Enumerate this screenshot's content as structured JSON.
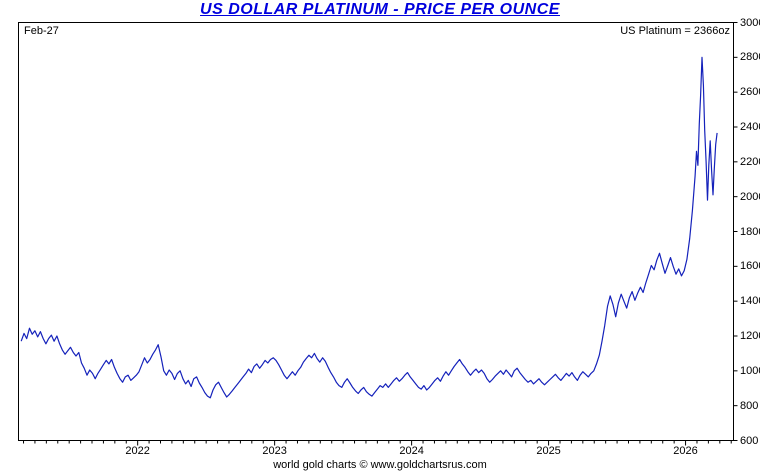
{
  "title": "US DOLLAR PLATINUM - PRICE PER OUNCE",
  "annotations": {
    "date_label": "Feb-27",
    "current_label": "US Platinum = 2366oz"
  },
  "footer": "world gold charts © www.goldchartsrus.com",
  "colors": {
    "title": "#0000dd",
    "line": "#1522bb",
    "axis": "#000000"
  },
  "chart_data": {
    "type": "line",
    "title": "US DOLLAR PLATINUM - PRICE PER OUNCE",
    "xlabel": "",
    "ylabel": "",
    "x_unit": "decimal_year",
    "xlim": [
      2021.13,
      2026.35
    ],
    "ylim": [
      600,
      3000
    ],
    "grid": false,
    "legend_position": "none",
    "x_ticks": [
      2022,
      2023,
      2024,
      2025,
      2026
    ],
    "y_ticks": [
      600,
      800,
      1000,
      1200,
      1400,
      1600,
      1800,
      2000,
      2200,
      2400,
      2600,
      2800,
      3000
    ],
    "series": [
      {
        "name": "US Platinum (USD per ounce)",
        "points": [
          [
            2021.15,
            1170
          ],
          [
            2021.17,
            1215
          ],
          [
            2021.19,
            1185
          ],
          [
            2021.21,
            1245
          ],
          [
            2021.23,
            1210
          ],
          [
            2021.25,
            1230
          ],
          [
            2021.27,
            1195
          ],
          [
            2021.29,
            1225
          ],
          [
            2021.31,
            1185
          ],
          [
            2021.33,
            1155
          ],
          [
            2021.35,
            1185
          ],
          [
            2021.37,
            1205
          ],
          [
            2021.39,
            1170
          ],
          [
            2021.41,
            1200
          ],
          [
            2021.43,
            1155
          ],
          [
            2021.45,
            1120
          ],
          [
            2021.47,
            1095
          ],
          [
            2021.49,
            1115
          ],
          [
            2021.51,
            1135
          ],
          [
            2021.53,
            1105
          ],
          [
            2021.55,
            1085
          ],
          [
            2021.57,
            1105
          ],
          [
            2021.59,
            1045
          ],
          [
            2021.61,
            1015
          ],
          [
            2021.63,
            975
          ],
          [
            2021.65,
            1005
          ],
          [
            2021.67,
            985
          ],
          [
            2021.69,
            955
          ],
          [
            2021.71,
            985
          ],
          [
            2021.73,
            1010
          ],
          [
            2021.75,
            1035
          ],
          [
            2021.77,
            1060
          ],
          [
            2021.79,
            1040
          ],
          [
            2021.81,
            1065
          ],
          [
            2021.83,
            1020
          ],
          [
            2021.85,
            985
          ],
          [
            2021.87,
            955
          ],
          [
            2021.89,
            935
          ],
          [
            2021.91,
            965
          ],
          [
            2021.93,
            975
          ],
          [
            2021.95,
            945
          ],
          [
            2021.97,
            960
          ],
          [
            2021.99,
            975
          ],
          [
            2022.01,
            995
          ],
          [
            2022.03,
            1035
          ],
          [
            2022.05,
            1075
          ],
          [
            2022.07,
            1045
          ],
          [
            2022.09,
            1065
          ],
          [
            2022.11,
            1095
          ],
          [
            2022.13,
            1120
          ],
          [
            2022.15,
            1150
          ],
          [
            2022.17,
            1080
          ],
          [
            2022.19,
            1000
          ],
          [
            2022.21,
            975
          ],
          [
            2022.23,
            1005
          ],
          [
            2022.25,
            985
          ],
          [
            2022.27,
            950
          ],
          [
            2022.29,
            985
          ],
          [
            2022.31,
            1000
          ],
          [
            2022.33,
            955
          ],
          [
            2022.35,
            925
          ],
          [
            2022.37,
            945
          ],
          [
            2022.39,
            910
          ],
          [
            2022.41,
            955
          ],
          [
            2022.43,
            965
          ],
          [
            2022.45,
            930
          ],
          [
            2022.47,
            905
          ],
          [
            2022.49,
            875
          ],
          [
            2022.51,
            855
          ],
          [
            2022.53,
            845
          ],
          [
            2022.55,
            890
          ],
          [
            2022.57,
            920
          ],
          [
            2022.59,
            935
          ],
          [
            2022.61,
            905
          ],
          [
            2022.63,
            875
          ],
          [
            2022.65,
            850
          ],
          [
            2022.67,
            865
          ],
          [
            2022.69,
            885
          ],
          [
            2022.71,
            905
          ],
          [
            2022.73,
            925
          ],
          [
            2022.75,
            945
          ],
          [
            2022.77,
            965
          ],
          [
            2022.79,
            985
          ],
          [
            2022.81,
            1010
          ],
          [
            2022.83,
            990
          ],
          [
            2022.85,
            1025
          ],
          [
            2022.87,
            1040
          ],
          [
            2022.89,
            1015
          ],
          [
            2022.91,
            1035
          ],
          [
            2022.93,
            1060
          ],
          [
            2022.95,
            1045
          ],
          [
            2022.97,
            1065
          ],
          [
            2022.99,
            1075
          ],
          [
            2023.01,
            1060
          ],
          [
            2023.03,
            1035
          ],
          [
            2023.05,
            1005
          ],
          [
            2023.07,
            975
          ],
          [
            2023.09,
            955
          ],
          [
            2023.11,
            975
          ],
          [
            2023.13,
            995
          ],
          [
            2023.15,
            975
          ],
          [
            2023.17,
            1000
          ],
          [
            2023.19,
            1020
          ],
          [
            2023.21,
            1050
          ],
          [
            2023.23,
            1070
          ],
          [
            2023.25,
            1090
          ],
          [
            2023.27,
            1075
          ],
          [
            2023.29,
            1100
          ],
          [
            2023.31,
            1070
          ],
          [
            2023.33,
            1050
          ],
          [
            2023.35,
            1075
          ],
          [
            2023.37,
            1055
          ],
          [
            2023.39,
            1020
          ],
          [
            2023.41,
            990
          ],
          [
            2023.43,
            965
          ],
          [
            2023.45,
            935
          ],
          [
            2023.47,
            915
          ],
          [
            2023.49,
            905
          ],
          [
            2023.51,
            935
          ],
          [
            2023.53,
            955
          ],
          [
            2023.55,
            930
          ],
          [
            2023.57,
            905
          ],
          [
            2023.59,
            885
          ],
          [
            2023.61,
            870
          ],
          [
            2023.63,
            890
          ],
          [
            2023.65,
            905
          ],
          [
            2023.67,
            880
          ],
          [
            2023.69,
            865
          ],
          [
            2023.71,
            855
          ],
          [
            2023.73,
            875
          ],
          [
            2023.75,
            895
          ],
          [
            2023.77,
            915
          ],
          [
            2023.79,
            905
          ],
          [
            2023.81,
            925
          ],
          [
            2023.83,
            905
          ],
          [
            2023.85,
            925
          ],
          [
            2023.87,
            945
          ],
          [
            2023.89,
            960
          ],
          [
            2023.91,
            940
          ],
          [
            2023.93,
            955
          ],
          [
            2023.95,
            975
          ],
          [
            2023.97,
            990
          ],
          [
            2023.99,
            965
          ],
          [
            2024.01,
            945
          ],
          [
            2024.03,
            925
          ],
          [
            2024.05,
            905
          ],
          [
            2024.07,
            895
          ],
          [
            2024.09,
            915
          ],
          [
            2024.11,
            890
          ],
          [
            2024.13,
            905
          ],
          [
            2024.15,
            925
          ],
          [
            2024.17,
            945
          ],
          [
            2024.19,
            960
          ],
          [
            2024.21,
            940
          ],
          [
            2024.23,
            970
          ],
          [
            2024.25,
            995
          ],
          [
            2024.27,
            975
          ],
          [
            2024.29,
            1000
          ],
          [
            2024.31,
            1025
          ],
          [
            2024.33,
            1045
          ],
          [
            2024.35,
            1065
          ],
          [
            2024.37,
            1040
          ],
          [
            2024.39,
            1020
          ],
          [
            2024.41,
            995
          ],
          [
            2024.43,
            975
          ],
          [
            2024.45,
            995
          ],
          [
            2024.47,
            1010
          ],
          [
            2024.49,
            990
          ],
          [
            2024.51,
            1005
          ],
          [
            2024.53,
            985
          ],
          [
            2024.55,
            955
          ],
          [
            2024.57,
            935
          ],
          [
            2024.59,
            950
          ],
          [
            2024.61,
            970
          ],
          [
            2024.63,
            985
          ],
          [
            2024.65,
            1000
          ],
          [
            2024.67,
            980
          ],
          [
            2024.69,
            1005
          ],
          [
            2024.71,
            985
          ],
          [
            2024.73,
            965
          ],
          [
            2024.75,
            1000
          ],
          [
            2024.77,
            1015
          ],
          [
            2024.79,
            990
          ],
          [
            2024.81,
            970
          ],
          [
            2024.83,
            950
          ],
          [
            2024.85,
            935
          ],
          [
            2024.87,
            945
          ],
          [
            2024.89,
            925
          ],
          [
            2024.91,
            940
          ],
          [
            2024.93,
            955
          ],
          [
            2024.95,
            935
          ],
          [
            2024.97,
            920
          ],
          [
            2024.99,
            935
          ],
          [
            2025.01,
            950
          ],
          [
            2025.03,
            965
          ],
          [
            2025.05,
            980
          ],
          [
            2025.07,
            960
          ],
          [
            2025.09,
            945
          ],
          [
            2025.11,
            965
          ],
          [
            2025.13,
            985
          ],
          [
            2025.15,
            970
          ],
          [
            2025.17,
            990
          ],
          [
            2025.19,
            965
          ],
          [
            2025.21,
            945
          ],
          [
            2025.23,
            975
          ],
          [
            2025.25,
            995
          ],
          [
            2025.27,
            980
          ],
          [
            2025.29,
            965
          ],
          [
            2025.31,
            985
          ],
          [
            2025.33,
            1000
          ],
          [
            2025.35,
            1040
          ],
          [
            2025.37,
            1090
          ],
          [
            2025.39,
            1170
          ],
          [
            2025.41,
            1260
          ],
          [
            2025.43,
            1370
          ],
          [
            2025.45,
            1430
          ],
          [
            2025.47,
            1380
          ],
          [
            2025.49,
            1310
          ],
          [
            2025.51,
            1390
          ],
          [
            2025.53,
            1440
          ],
          [
            2025.55,
            1400
          ],
          [
            2025.57,
            1360
          ],
          [
            2025.59,
            1420
          ],
          [
            2025.61,
            1455
          ],
          [
            2025.63,
            1405
          ],
          [
            2025.65,
            1445
          ],
          [
            2025.67,
            1480
          ],
          [
            2025.69,
            1450
          ],
          [
            2025.71,
            1505
          ],
          [
            2025.73,
            1555
          ],
          [
            2025.75,
            1605
          ],
          [
            2025.77,
            1580
          ],
          [
            2025.79,
            1635
          ],
          [
            2025.81,
            1675
          ],
          [
            2025.83,
            1615
          ],
          [
            2025.85,
            1560
          ],
          [
            2025.87,
            1605
          ],
          [
            2025.89,
            1650
          ],
          [
            2025.91,
            1600
          ],
          [
            2025.93,
            1555
          ],
          [
            2025.95,
            1585
          ],
          [
            2025.97,
            1545
          ],
          [
            2025.99,
            1575
          ],
          [
            2026.01,
            1640
          ],
          [
            2026.03,
            1760
          ],
          [
            2026.05,
            1920
          ],
          [
            2026.07,
            2120
          ],
          [
            2026.08,
            2260
          ],
          [
            2026.09,
            2180
          ],
          [
            2026.1,
            2420
          ],
          [
            2026.11,
            2580
          ],
          [
            2026.12,
            2800
          ],
          [
            2026.13,
            2640
          ],
          [
            2026.14,
            2380
          ],
          [
            2026.15,
            2200
          ],
          [
            2026.16,
            1980
          ],
          [
            2026.17,
            2180
          ],
          [
            2026.18,
            2320
          ],
          [
            2026.19,
            2150
          ],
          [
            2026.2,
            2010
          ],
          [
            2026.21,
            2160
          ],
          [
            2026.22,
            2300
          ],
          [
            2026.23,
            2366
          ]
        ]
      }
    ]
  }
}
